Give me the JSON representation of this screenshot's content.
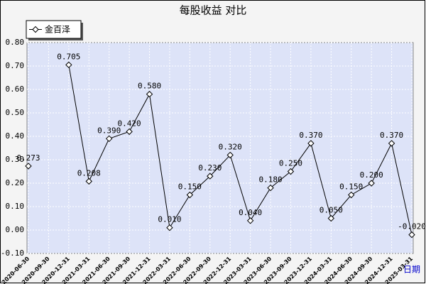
{
  "chart_data": {
    "type": "line",
    "title": "每股收益 对比",
    "x_label": "日期",
    "categories": [
      "2020-06-30",
      "2020-09-30",
      "2020-12-31",
      "2021-03-31",
      "2021-06-30",
      "2021-09-30",
      "2021-12-31",
      "2022-03-31",
      "2022-06-30",
      "2022-09-30",
      "2022-12-31",
      "2023-03-31",
      "2023-06-30",
      "2023-09-30",
      "2023-12-31",
      "2024-03-31",
      "2024-06-30",
      "2024-09-30",
      "2024-12-31",
      "2025-03-31"
    ],
    "series": [
      {
        "name": "金百泽",
        "color": "#000000",
        "values": [
          0.273,
          null,
          0.705,
          0.208,
          0.39,
          0.42,
          0.58,
          0.01,
          0.15,
          0.23,
          0.32,
          0.04,
          0.18,
          0.25,
          0.37,
          0.05,
          0.15,
          0.2,
          0.37,
          -0.02
        ],
        "value_labels": [
          "0.273",
          null,
          "0.705",
          "0.208",
          "0.390",
          "0.420",
          "0.580",
          "0.010",
          "0.150",
          "0.230",
          "0.320",
          "0.040",
          "0.180",
          "0.250",
          "0.370",
          "0.050",
          "0.150",
          "0.200",
          "0.370",
          "-0.020"
        ]
      }
    ],
    "ylim": [
      -0.1,
      0.8
    ],
    "yticks": [
      {
        "value": -0.1,
        "label": "-0.10"
      },
      {
        "value": 0,
        "label": "0.00"
      },
      {
        "value": 0.1,
        "label": "0.10"
      },
      {
        "value": 0.2,
        "label": "0.20"
      },
      {
        "value": 0.3,
        "label": "0.30"
      },
      {
        "value": 0.4,
        "label": "0.40"
      },
      {
        "value": 0.5,
        "label": "0.50"
      },
      {
        "value": 0.6,
        "label": "0.60"
      },
      {
        "value": 0.7,
        "label": "0.70"
      },
      {
        "value": 0.8,
        "label": "0.80"
      }
    ],
    "grid": true,
    "legend": "top-left",
    "plot_background": "#dde3f8"
  }
}
